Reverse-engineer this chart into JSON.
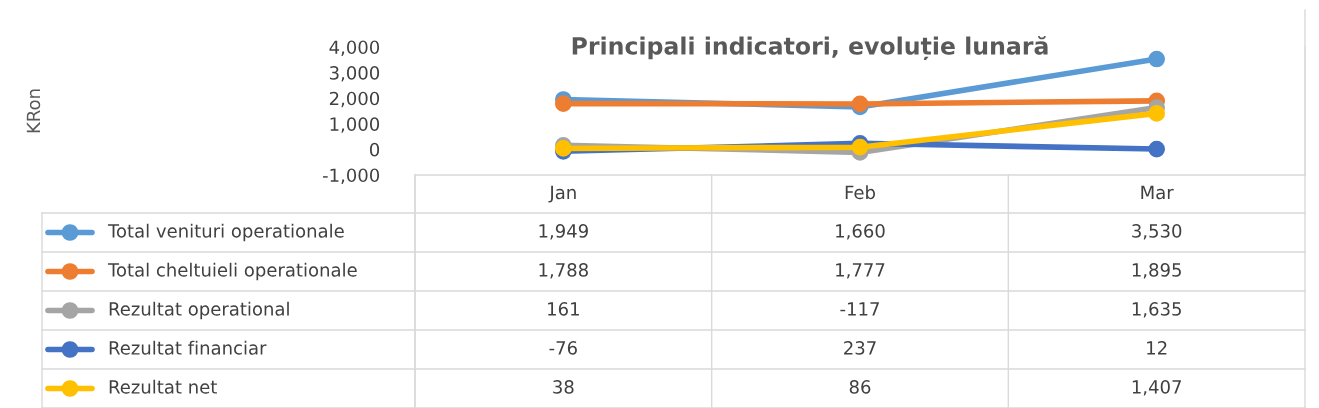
{
  "chart_data": {
    "type": "line",
    "title": "Principali indicatori, evoluție lunară",
    "annotations": [
      "KRon"
    ],
    "categories": [
      "Jan",
      "Feb",
      "Mar"
    ],
    "series": [
      {
        "name": "Total venituri operationale",
        "color": "#5b9bd5",
        "values": [
          1949,
          1660,
          3530
        ],
        "value_labels": [
          "1,949",
          "1,660",
          "3,530"
        ]
      },
      {
        "name": "Total cheltuieli operationale",
        "color": "#ed7d31",
        "values": [
          1788,
          1777,
          1895
        ],
        "value_labels": [
          "1,788",
          "1,777",
          "1,895"
        ]
      },
      {
        "name": "Rezultat operational",
        "color": "#a5a5a5",
        "values": [
          161,
          -117,
          1635
        ],
        "value_labels": [
          "161",
          "-117",
          "1,635"
        ]
      },
      {
        "name": "Rezultat financiar",
        "color": "#4472c4",
        "values": [
          -76,
          237,
          12
        ],
        "value_labels": [
          "-76",
          "237",
          "12"
        ]
      },
      {
        "name": "Rezultat net",
        "color": "#ffc000",
        "values": [
          38,
          86,
          1407
        ],
        "value_labels": [
          "38",
          "86",
          "1,407"
        ]
      }
    ],
    "ylim": [
      -1000,
      4000
    ],
    "yticks": [
      {
        "value": -1000,
        "label": "-1,000"
      },
      {
        "value": 0,
        "label": "0"
      },
      {
        "value": 1000,
        "label": "1,000"
      },
      {
        "value": 2000,
        "label": "2,000"
      },
      {
        "value": 3000,
        "label": "3,000"
      },
      {
        "value": 4000,
        "label": "4,000"
      }
    ],
    "grid": false,
    "legend": "bottom",
    "marker": "circle",
    "line_style": "solid"
  }
}
